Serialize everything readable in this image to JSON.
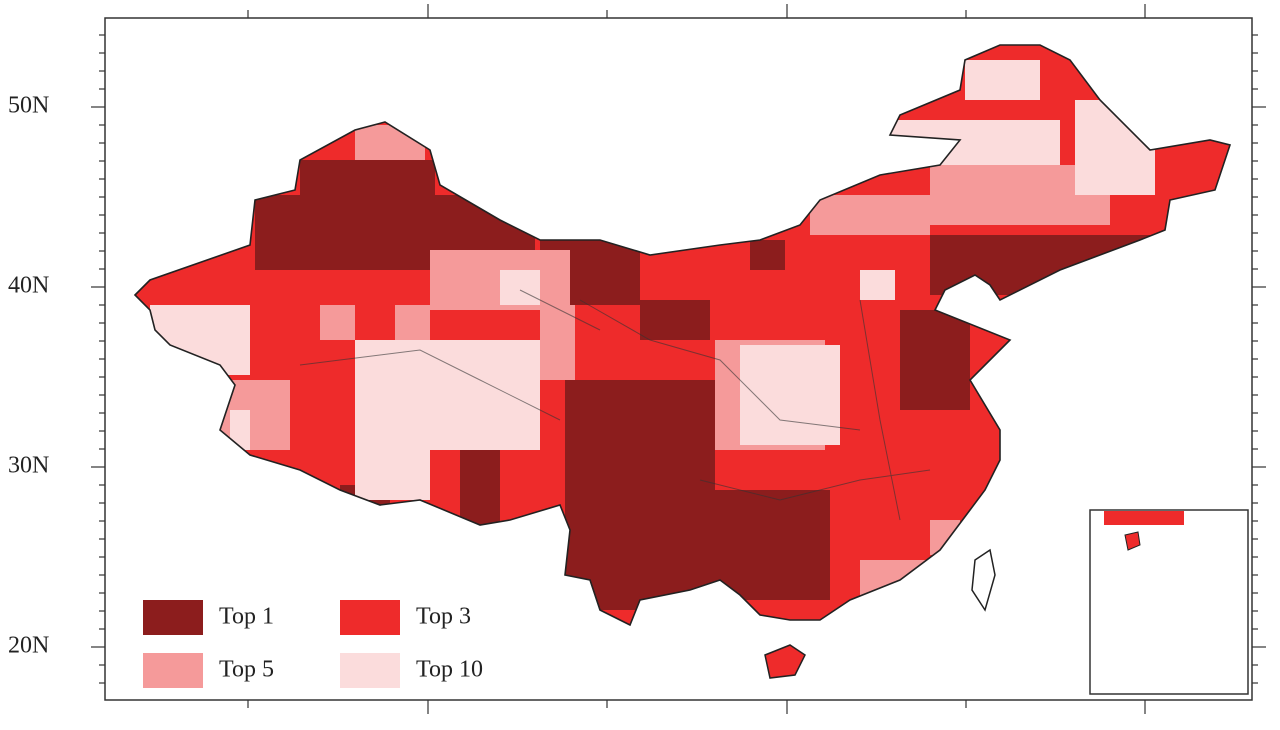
{
  "map": {
    "lat_labels": [
      "50N",
      "40N",
      "30N",
      "20N"
    ],
    "legend": [
      {
        "label": "Top 1",
        "color": "#8c1d1d"
      },
      {
        "label": "Top 3",
        "color": "#ee2b2b"
      },
      {
        "label": "Top 5",
        "color": "#f59a9a"
      },
      {
        "label": "Top 10",
        "color": "#fbdcdc"
      }
    ]
  }
}
